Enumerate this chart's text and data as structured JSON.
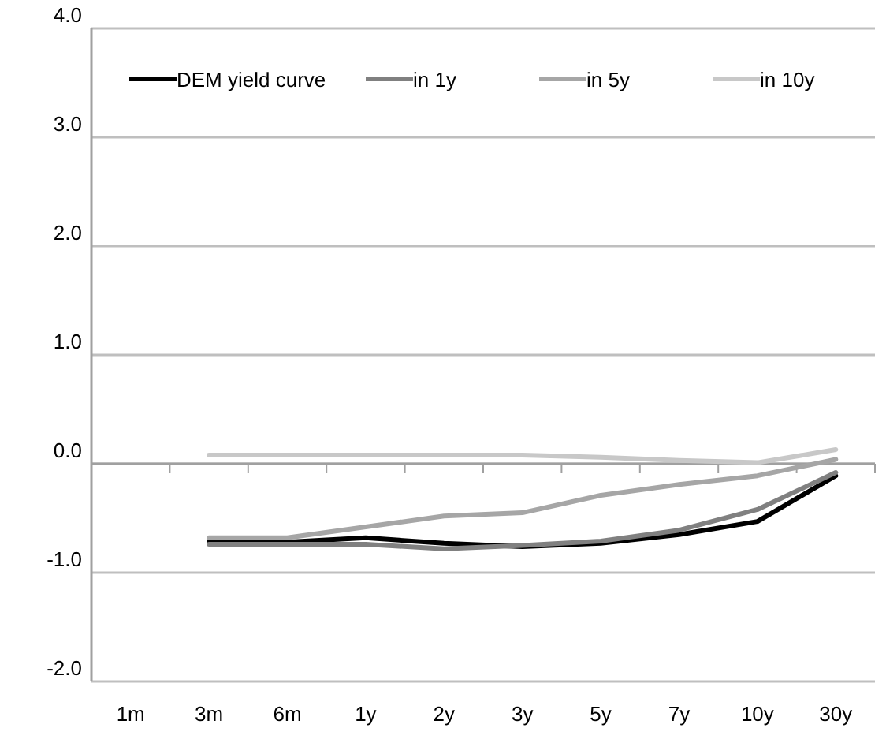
{
  "chart_data": {
    "type": "line",
    "categories": [
      "1m",
      "3m",
      "6m",
      "1y",
      "2y",
      "3y",
      "5y",
      "7y",
      "10y",
      "30y"
    ],
    "series": [
      {
        "name": "DEM yield curve",
        "color": "#000000",
        "values": [
          null,
          -0.72,
          -0.72,
          -0.68,
          -0.73,
          -0.76,
          -0.73,
          -0.65,
          -0.53,
          -0.11
        ]
      },
      {
        "name": "in 1y",
        "color": "#808080",
        "values": [
          null,
          -0.74,
          -0.74,
          -0.74,
          -0.78,
          -0.75,
          -0.71,
          -0.61,
          -0.42,
          -0.08
        ]
      },
      {
        "name": "in 5y",
        "color": "#a6a6a6",
        "values": [
          null,
          -0.68,
          -0.68,
          -0.58,
          -0.48,
          -0.45,
          -0.29,
          -0.19,
          -0.11,
          0.04
        ]
      },
      {
        "name": "in 10y",
        "color": "#c8c8c8",
        "values": [
          null,
          0.08,
          0.08,
          0.08,
          0.08,
          0.08,
          0.06,
          0.03,
          0.01,
          0.13
        ]
      }
    ],
    "ylim": [
      -2,
      4
    ],
    "yticks": [
      {
        "value": -2,
        "label": "-2.0"
      },
      {
        "value": -1,
        "label": "-1.0"
      },
      {
        "value": 0,
        "label": "0.0"
      },
      {
        "value": 1,
        "label": "1.0"
      },
      {
        "value": 2,
        "label": "2.0"
      },
      {
        "value": 3,
        "label": "3.0"
      },
      {
        "value": 4,
        "label": "4.0"
      }
    ],
    "grid": "y",
    "legend": "top",
    "marker": "none",
    "line_style": "solid"
  }
}
